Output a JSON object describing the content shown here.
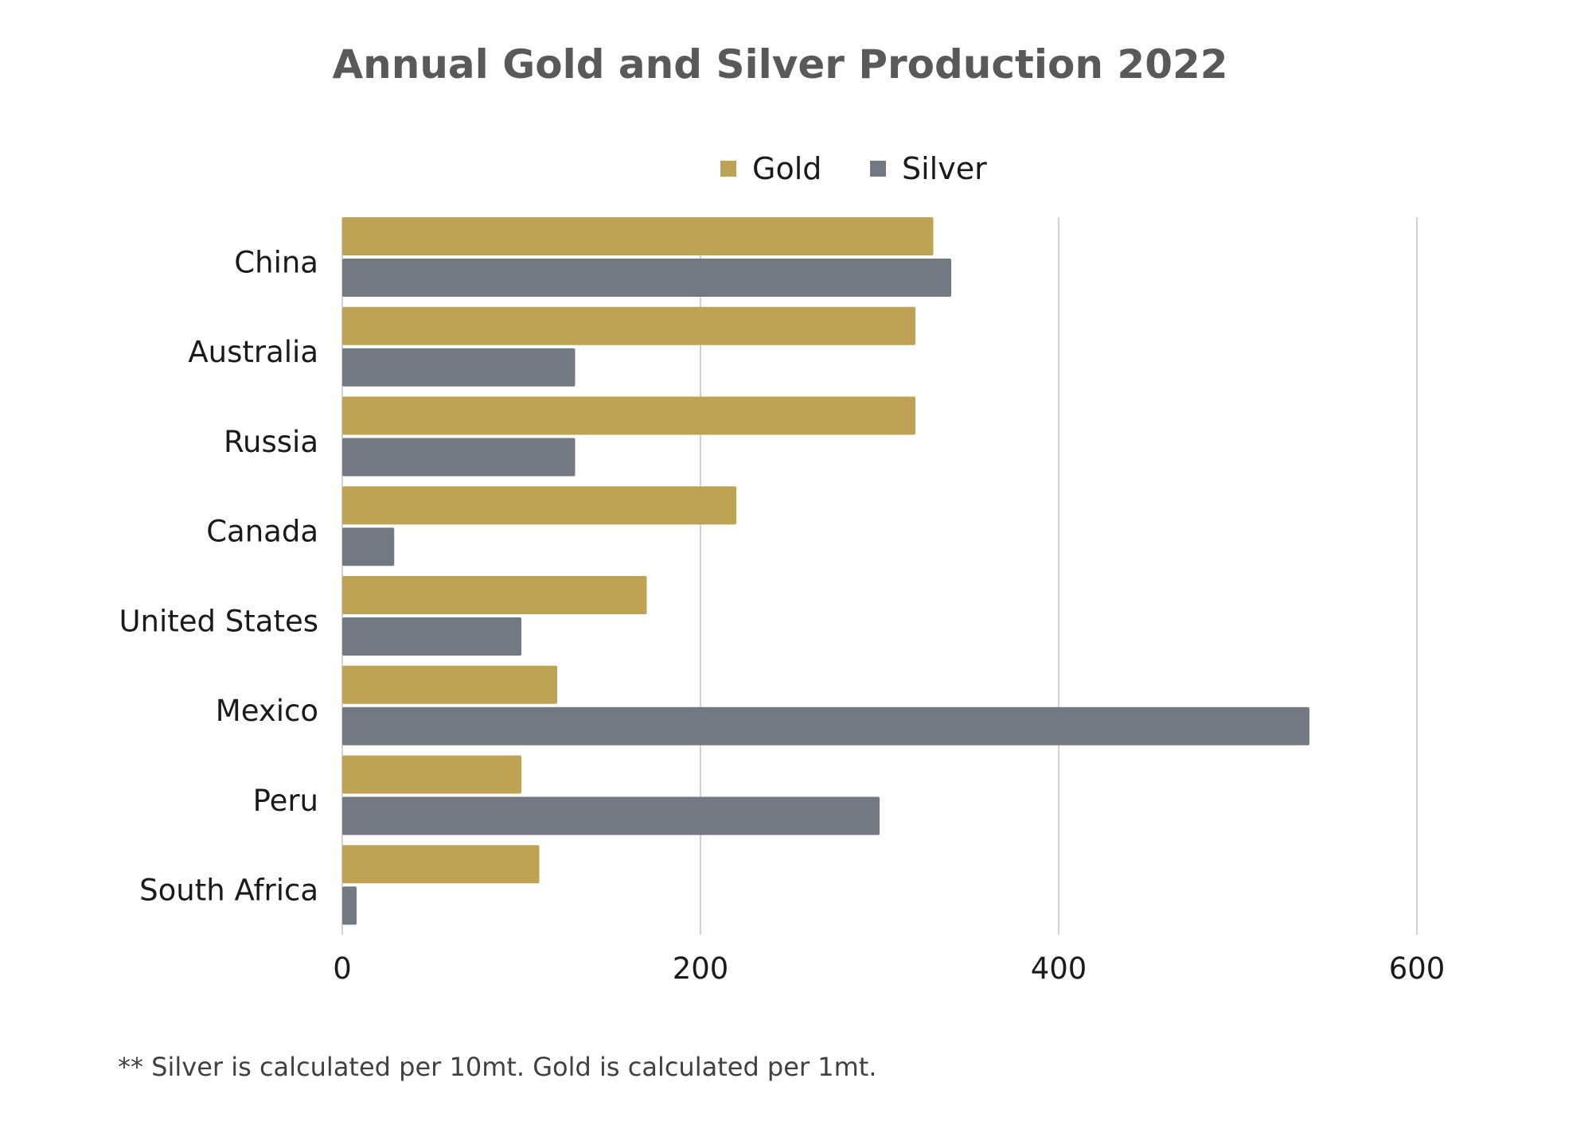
{
  "chart_data": {
    "type": "bar",
    "orientation": "horizontal",
    "title": "Annual Gold and Silver Production 2022",
    "categories": [
      "China",
      "Australia",
      "Russia",
      "Canada",
      "United States",
      "Mexico",
      "Peru",
      "South Africa"
    ],
    "series": [
      {
        "name": "Gold",
        "color": "#BFA355",
        "values": [
          330,
          320,
          320,
          220,
          170,
          120,
          100,
          110
        ]
      },
      {
        "name": "Silver",
        "color": "#737982",
        "values": [
          340,
          130,
          130,
          29,
          100,
          540,
          300,
          8
        ]
      }
    ],
    "xticks": [
      "0",
      "200",
      "400",
      "600"
    ],
    "xlim": [
      0,
      600
    ],
    "xlabel": "",
    "ylabel": "",
    "grid": "vertical",
    "legend": "top-center",
    "footnote": "** Silver is calculated per 10mt. Gold is calculated per 1mt."
  }
}
